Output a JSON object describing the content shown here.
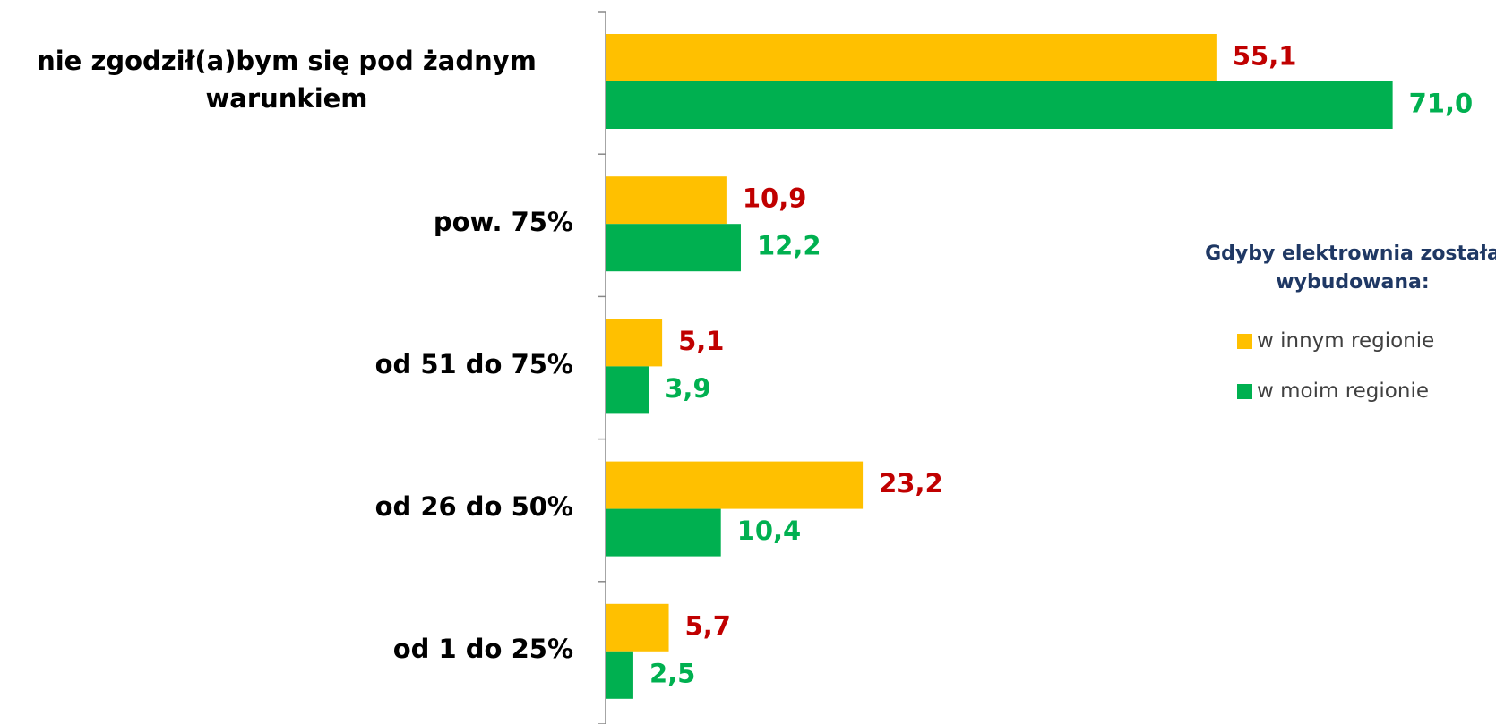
{
  "chart_data": {
    "type": "bar",
    "orientation": "horizontal",
    "categories": [
      "nie zgodził(a)bym się pod żadnym warunkiem",
      "pow. 75%",
      "od 51 do 75%",
      "od 26 do 50%",
      "od 1 do 25%"
    ],
    "series": [
      {
        "name": "w innym regionie",
        "color": "#FFC000",
        "label_color": "#C00000",
        "values": [
          55.1,
          10.9,
          5.1,
          23.2,
          5.7
        ],
        "value_labels": [
          "55,1",
          "10,9",
          "5,1",
          "23,2",
          "5,7"
        ]
      },
      {
        "name": "w moim regionie",
        "color": "#00B050",
        "label_color": "#00B050",
        "values": [
          71.0,
          12.2,
          3.9,
          10.4,
          2.5
        ],
        "value_labels": [
          "71,0",
          "12,2",
          "3,9",
          "10,4",
          "2,5"
        ]
      }
    ],
    "legend_title": "Gdyby elektrownia została wybudowana:",
    "xlim": [
      0,
      80
    ]
  }
}
